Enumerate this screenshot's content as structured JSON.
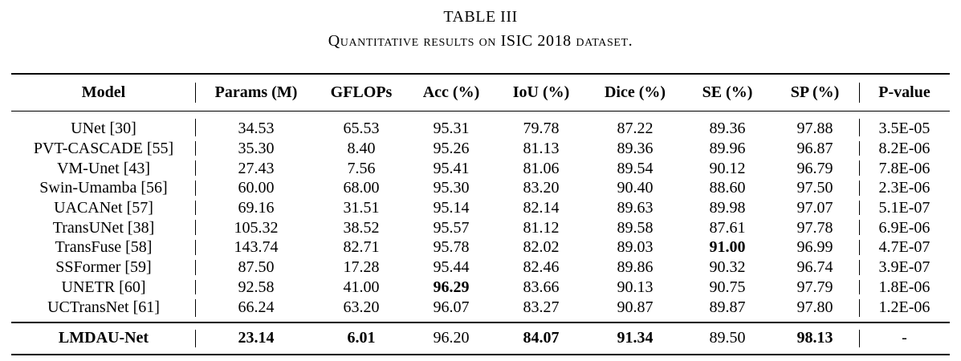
{
  "caption": {
    "label": "TABLE III",
    "title": "Quantitative results on ISIC 2018 dataset."
  },
  "headers": [
    "Model",
    "Params (M)",
    "GFLOPs",
    "Acc (%)",
    "IoU (%)",
    "Dice (%)",
    "SE (%)",
    "SP (%)",
    "P-value"
  ],
  "rows": [
    {
      "model": "UNet [30]",
      "params": "34.53",
      "gflops": "65.53",
      "acc": "95.31",
      "iou": "79.78",
      "dice": "87.22",
      "se": "89.36",
      "sp": "97.88",
      "pvalue": "3.5E-05"
    },
    {
      "model": "PVT-CASCADE [55]",
      "params": "35.30",
      "gflops": "8.40",
      "acc": "95.26",
      "iou": "81.13",
      "dice": "89.36",
      "se": "89.96",
      "sp": "96.87",
      "pvalue": "8.2E-06"
    },
    {
      "model": "VM-Unet [43]",
      "params": "27.43",
      "gflops": "7.56",
      "acc": "95.41",
      "iou": "81.06",
      "dice": "89.54",
      "se": "90.12",
      "sp": "96.79",
      "pvalue": "7.8E-06"
    },
    {
      "model": "Swin-Umamba [56]",
      "params": "60.00",
      "gflops": "68.00",
      "acc": "95.30",
      "iou": "83.20",
      "dice": "90.40",
      "se": "88.60",
      "sp": "97.50",
      "pvalue": "2.3E-06"
    },
    {
      "model": "UACANet [57]",
      "params": "69.16",
      "gflops": "31.51",
      "acc": "95.14",
      "iou": "82.14",
      "dice": "89.63",
      "se": "89.98",
      "sp": "97.07",
      "pvalue": "5.1E-07"
    },
    {
      "model": "TransUNet [38]",
      "params": "105.32",
      "gflops": "38.52",
      "acc": "95.57",
      "iou": "81.12",
      "dice": "89.58",
      "se": "87.61",
      "sp": "97.78",
      "pvalue": "6.9E-06"
    },
    {
      "model": "TransFuse [58]",
      "params": "143.74",
      "gflops": "82.71",
      "acc": "95.78",
      "iou": "82.02",
      "dice": "89.03",
      "se": "91.00",
      "sp": "96.99",
      "pvalue": "4.7E-07"
    },
    {
      "model": "SSFormer [59]",
      "params": "87.50",
      "gflops": "17.28",
      "acc": "95.44",
      "iou": "82.46",
      "dice": "89.86",
      "se": "90.32",
      "sp": "96.74",
      "pvalue": "3.9E-07"
    },
    {
      "model": "UNETR [60]",
      "params": "92.58",
      "gflops": "41.00",
      "acc": "96.29",
      "iou": "83.66",
      "dice": "90.13",
      "se": "90.75",
      "sp": "97.79",
      "pvalue": "1.8E-06"
    },
    {
      "model": "UCTransNet [61]",
      "params": "66.24",
      "gflops": "63.20",
      "acc": "96.07",
      "iou": "83.27",
      "dice": "90.87",
      "se": "89.87",
      "sp": "97.80",
      "pvalue": "1.2E-06"
    }
  ],
  "ours": {
    "model": "LMDAU-Net",
    "params": "23.14",
    "gflops": "6.01",
    "acc": "96.20",
    "iou": "84.07",
    "dice": "91.34",
    "se": "89.50",
    "sp": "98.13",
    "pvalue": "-"
  }
}
